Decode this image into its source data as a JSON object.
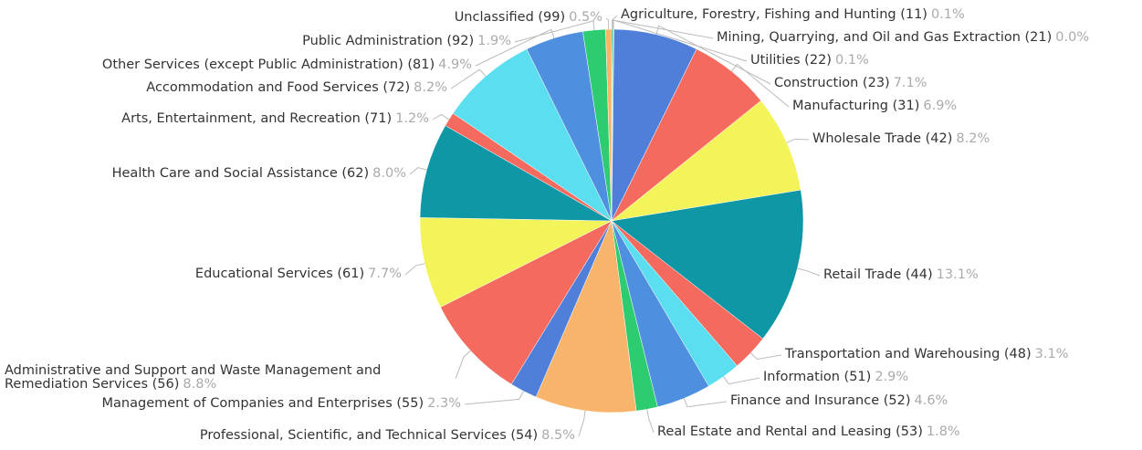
{
  "chart_data": {
    "type": "pie",
    "categories": [
      "Agriculture, Forestry, Fishing and Hunting (11)",
      "Mining, Quarrying, and Oil and Gas Extraction (21)",
      "Utilities (22)",
      "Construction (23)",
      "Manufacturing (31)",
      "Wholesale Trade (42)",
      "Retail Trade (44)",
      "Transportation and Warehousing (48)",
      "Information (51)",
      "Finance and Insurance (52)",
      "Real Estate and Rental and Leasing (53)",
      "Professional, Scientific, and Technical Services (54)",
      "Management of Companies and Enterprises (55)",
      "Administrative and Support and Waste Management and Remediation Services (56)",
      "Educational Services (61)",
      "Health Care and Social Assistance (62)",
      "Arts, Entertainment, and Recreation (71)",
      "Accommodation and Food Services (72)",
      "Other Services (except Public Administration) (81)",
      "Public Administration (92)",
      "Unclassified (99)"
    ],
    "values": [
      0.1,
      0.0,
      0.1,
      7.1,
      6.9,
      8.2,
      13.1,
      3.1,
      2.9,
      4.6,
      1.8,
      8.5,
      2.3,
      8.8,
      7.7,
      8.0,
      1.2,
      8.2,
      4.9,
      1.9,
      0.5
    ],
    "value_labels": [
      "0.1%",
      "0.0%",
      "0.1%",
      "7.1%",
      "6.9%",
      "8.2%",
      "13.1%",
      "3.1%",
      "2.9%",
      "4.6%",
      "1.8%",
      "8.5%",
      "2.3%",
      "8.8%",
      "7.7%",
      "8.0%",
      "1.2%",
      "8.2%",
      "4.9%",
      "1.9%",
      "0.5%"
    ],
    "colors": [
      "#0f97a5",
      "#5bdff0",
      "#2ecc71",
      "#4f7fd9",
      "#f46a5e",
      "#f3f35a",
      "#0f97a5",
      "#f46a5e",
      "#5bdff0",
      "#4f8fe0",
      "#2ecc71",
      "#f9b46b",
      "#4f7fd9",
      "#f46a5e",
      "#f3f35a",
      "#0f97a5",
      "#f46a5e",
      "#5bdff0",
      "#4f8fe0",
      "#2ecc71",
      "#f9b46b"
    ]
  }
}
